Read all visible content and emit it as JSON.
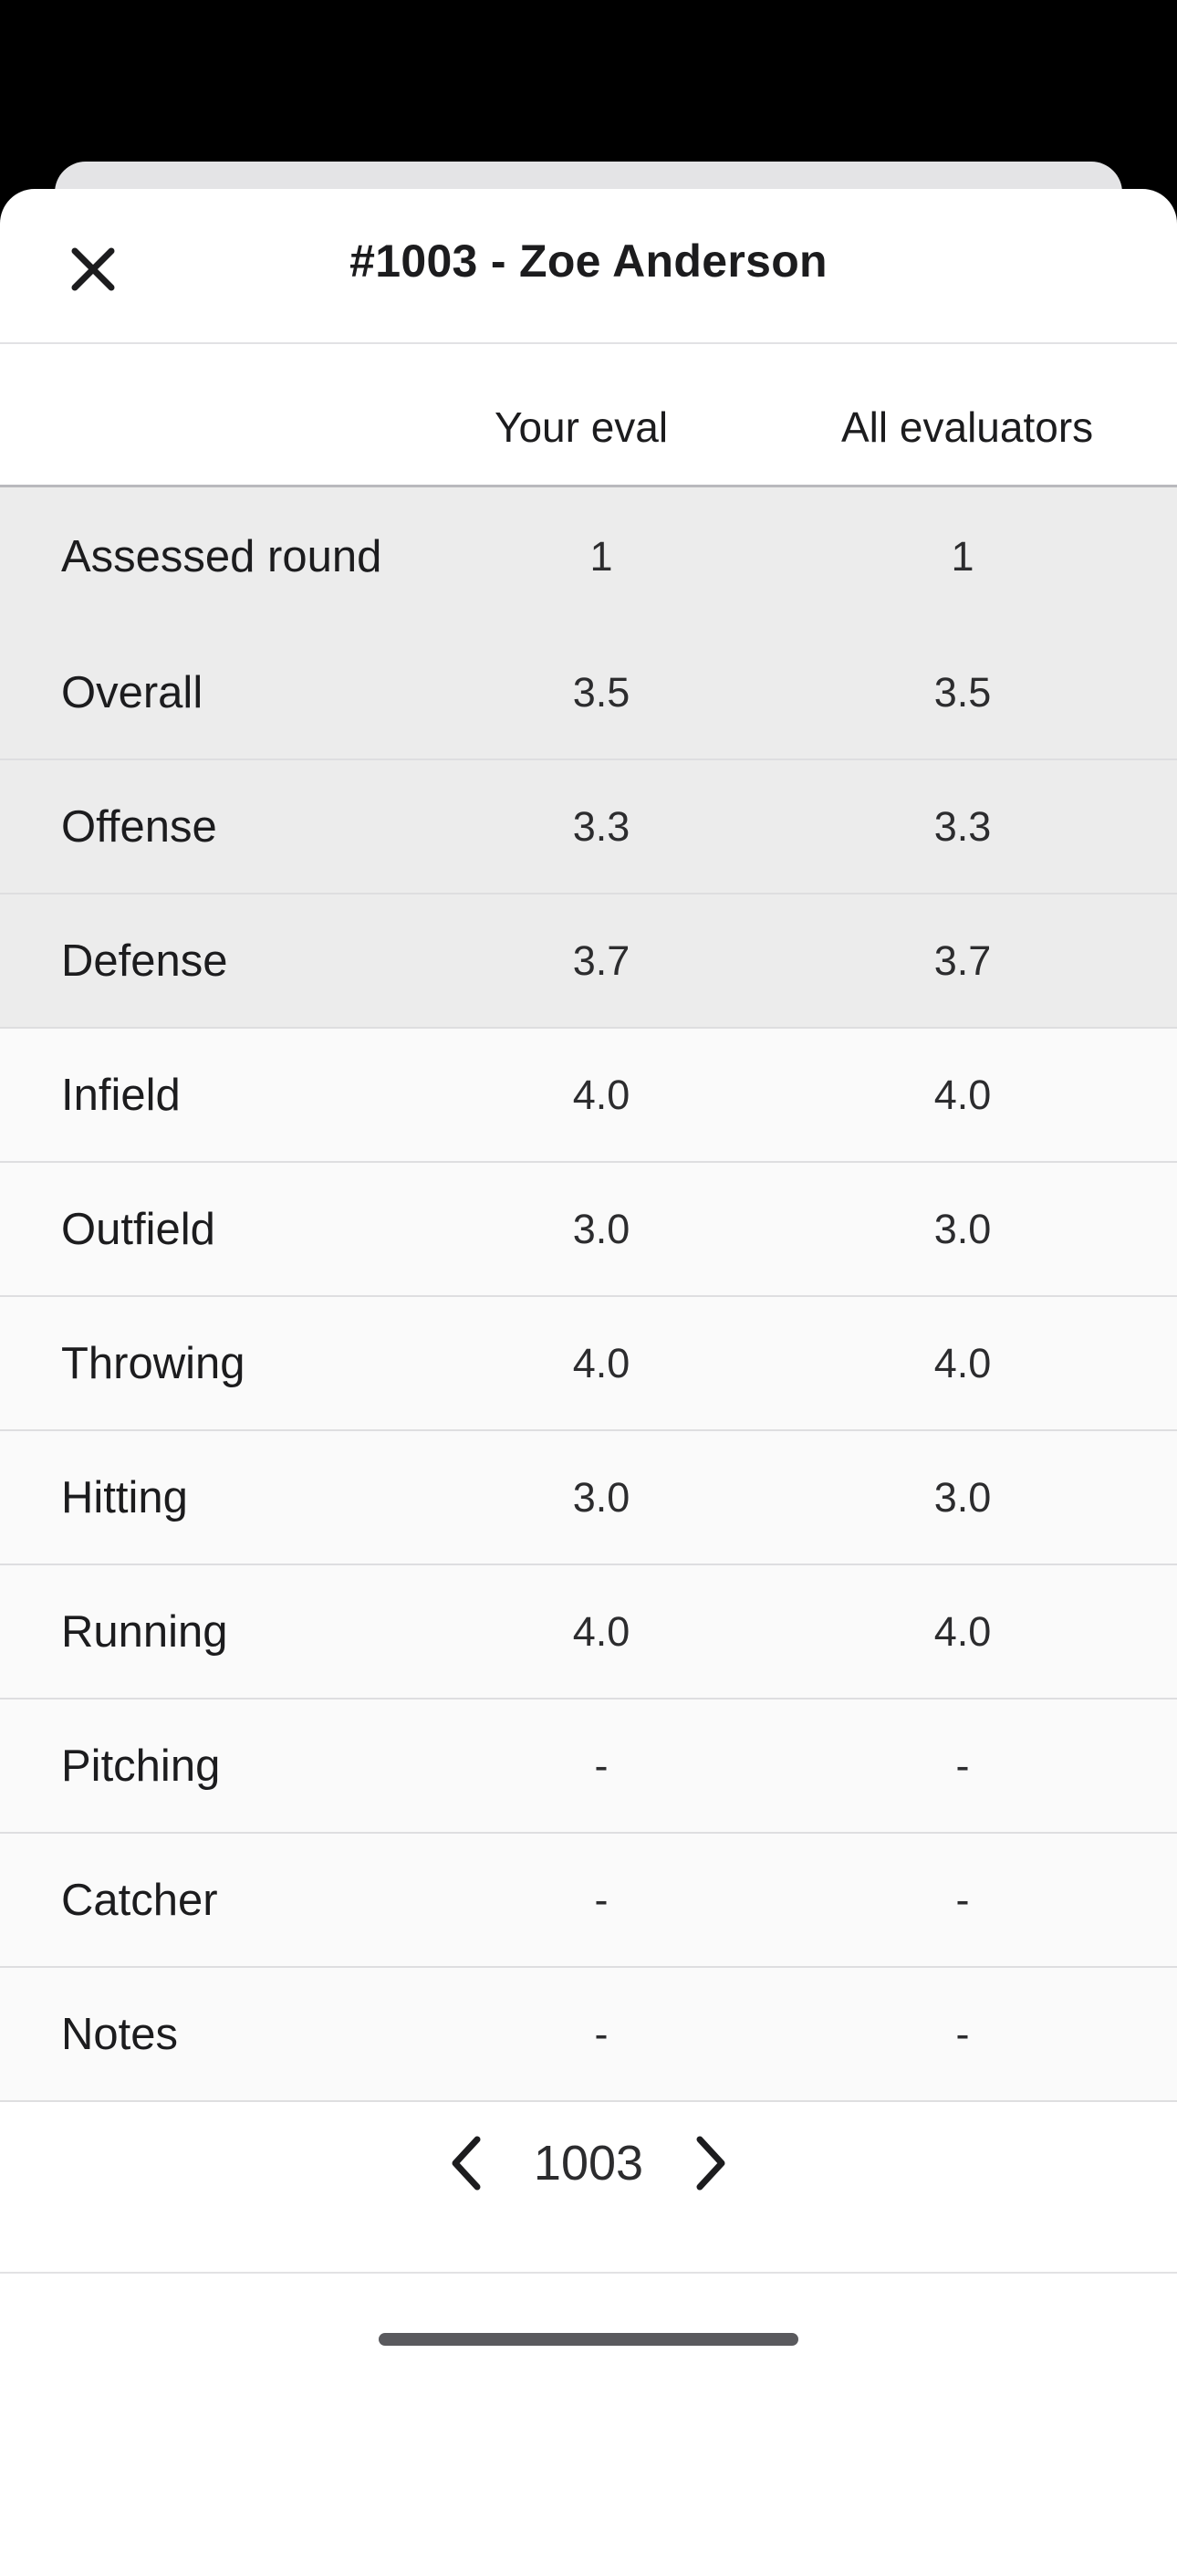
{
  "header": {
    "title": "#1003 - Zoe Anderson",
    "close_icon": "close-icon"
  },
  "columns": {
    "your_eval": "Your eval",
    "all_evaluators": "All evaluators"
  },
  "rows": [
    {
      "label": "Assessed round",
      "your": "1",
      "all": "1",
      "group": "summary"
    },
    {
      "label": "Overall",
      "your": "3.5",
      "all": "3.5",
      "group": "summary"
    },
    {
      "label": "Offense",
      "your": "3.3",
      "all": "3.3",
      "group": "summary"
    },
    {
      "label": "Defense",
      "your": "3.7",
      "all": "3.7",
      "group": "summary"
    },
    {
      "label": "Infield",
      "your": "4.0",
      "all": "4.0",
      "group": "detail"
    },
    {
      "label": "Outfield",
      "your": "3.0",
      "all": "3.0",
      "group": "detail"
    },
    {
      "label": "Throwing",
      "your": "4.0",
      "all": "4.0",
      "group": "detail"
    },
    {
      "label": "Hitting",
      "your": "3.0",
      "all": "3.0",
      "group": "detail"
    },
    {
      "label": "Running",
      "your": "4.0",
      "all": "4.0",
      "group": "detail"
    },
    {
      "label": "Pitching",
      "your": "-",
      "all": "-",
      "group": "detail"
    },
    {
      "label": "Catcher",
      "your": "-",
      "all": "-",
      "group": "detail"
    },
    {
      "label": "Notes",
      "your": "-",
      "all": "-",
      "group": "detail"
    }
  ],
  "pager": {
    "current": "1003",
    "prev_icon": "chevron-left-icon",
    "next_icon": "chevron-right-icon"
  },
  "colors": {
    "summary_row_bg": "#ececec",
    "detail_row_bg": "#fafafa",
    "text": "#1c1c1e"
  }
}
